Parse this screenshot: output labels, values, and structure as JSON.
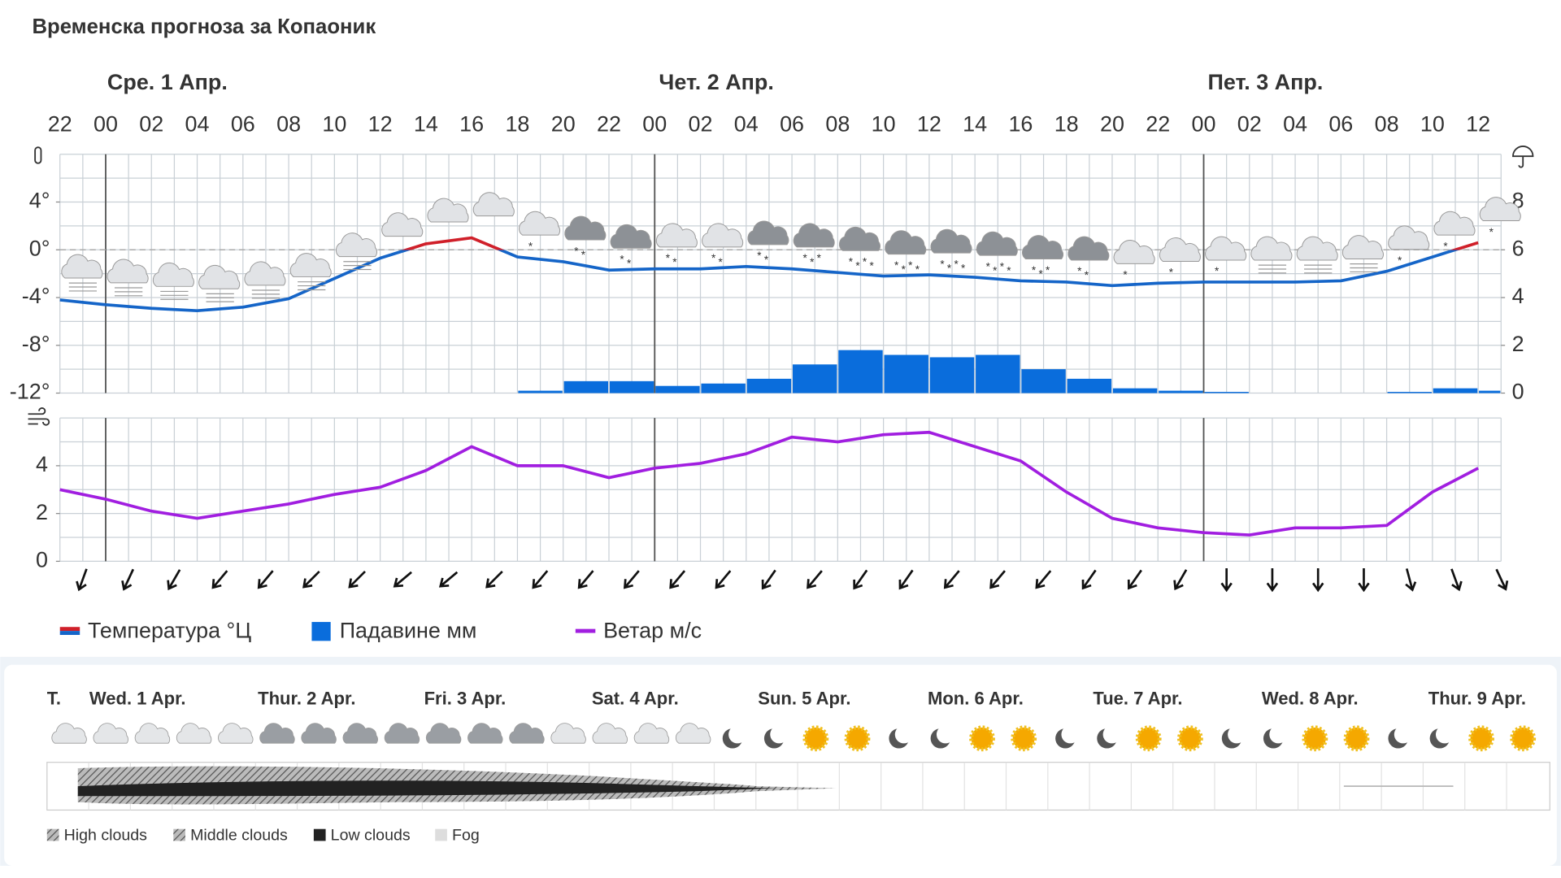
{
  "title": "Временска прогноза за Копаоник",
  "chart_data": [
    {
      "type": "line",
      "x": [
        "22",
        "00",
        "02",
        "04",
        "06",
        "08",
        "10",
        "12",
        "14",
        "16",
        "18",
        "20",
        "22",
        "00",
        "02",
        "04",
        "06",
        "08",
        "10",
        "12",
        "14",
        "16",
        "18",
        "20",
        "22",
        "00",
        "02",
        "04",
        "06",
        "08",
        "10",
        "12"
      ],
      "day_labels": [
        "Сре. 1 Апр.",
        "Чет. 2 Апр.",
        "Пет. 3 Апр."
      ],
      "series": [
        {
          "name": "Температура °Ц",
          "color": "#1565c8",
          "color_above_zero": "#d0202a",
          "values": [
            -4.2,
            -4.6,
            -4.9,
            -5.1,
            -4.8,
            -4.1,
            -2.4,
            -0.7,
            0.5,
            1.0,
            -0.6,
            -1.0,
            -1.7,
            -1.6,
            -1.6,
            -1.4,
            -1.6,
            -1.9,
            -2.2,
            -2.1,
            -2.3,
            -2.6,
            -2.7,
            -3.0,
            -2.8,
            -2.7,
            -2.7,
            -2.7,
            -2.6,
            -1.8,
            -0.6,
            0.6
          ]
        },
        {
          "name": "Падавине мм",
          "type": "bar",
          "axis": "y2",
          "color": "#0a6ddc",
          "values": [
            0,
            0,
            0,
            0,
            0,
            0,
            0,
            0,
            0,
            0,
            0.1,
            0.5,
            0.5,
            0.3,
            0.4,
            0.6,
            1.2,
            1.8,
            1.6,
            1.5,
            1.6,
            1.0,
            0.6,
            0.2,
            0.1,
            0.05,
            0,
            0,
            0,
            0.05,
            0.2,
            0.1
          ]
        }
      ],
      "ylim": [
        -12,
        8
      ],
      "yticks": [
        {
          "value": -12,
          "label": "-12°"
        },
        {
          "value": -8,
          "label": "-8°"
        },
        {
          "value": -4,
          "label": "-4°"
        },
        {
          "value": 0,
          "label": "0°"
        },
        {
          "value": 4,
          "label": "4°"
        }
      ],
      "y2lim": [
        0,
        10
      ],
      "y2ticks": [
        0,
        2,
        4,
        6,
        8
      ],
      "grid": true
    },
    {
      "type": "line",
      "series": [
        {
          "name": "Ветар м/с",
          "color": "#a11ee0",
          "values": [
            3.0,
            2.6,
            2.1,
            1.8,
            2.1,
            2.4,
            2.8,
            3.1,
            3.8,
            4.8,
            4.0,
            4.0,
            3.5,
            3.9,
            4.1,
            4.5,
            5.2,
            5.0,
            5.3,
            5.4,
            4.8,
            4.2,
            2.9,
            1.8,
            1.4,
            1.2,
            1.1,
            1.4,
            1.4,
            1.5,
            2.9,
            3.9
          ]
        }
      ],
      "wind_direction": [
        20,
        25,
        30,
        40,
        40,
        45,
        45,
        50,
        50,
        45,
        40,
        40,
        40,
        40,
        40,
        35,
        40,
        35,
        35,
        40,
        40,
        40,
        35,
        35,
        30,
        0,
        0,
        0,
        0,
        -15,
        -20,
        -25
      ],
      "ylim": [
        0,
        6
      ],
      "yticks": [
        0,
        2,
        4
      ],
      "grid": true
    }
  ],
  "forecast_strip": {
    "label": "T.",
    "days": [
      "Wed. 1 Apr.",
      "Thur. 2 Apr.",
      "Fri. 3 Apr.",
      "Sat. 4 Apr.",
      "Sun. 5 Apr.",
      "Mon. 6 Apr.",
      "Tue. 7 Apr.",
      "Wed. 8 Apr.",
      "Thur. 9 Apr."
    ],
    "legend": [
      "High clouds",
      "Middle clouds",
      "Low clouds",
      "Fog"
    ]
  }
}
